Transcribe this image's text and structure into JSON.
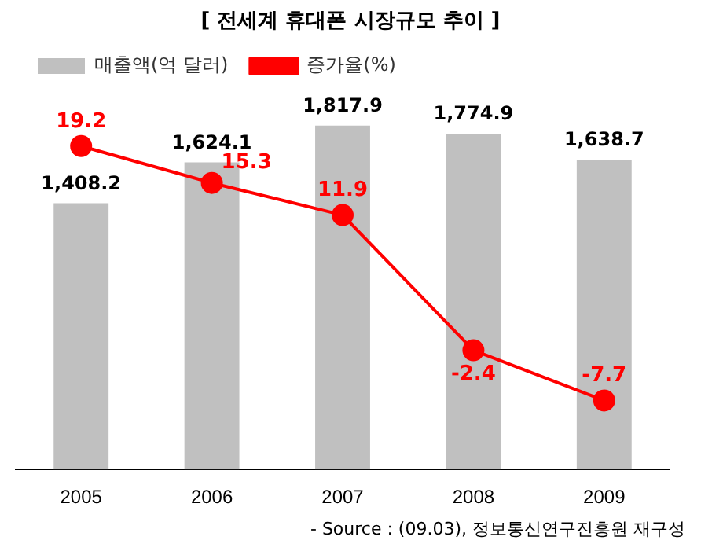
{
  "chart_data": {
    "type": "bar",
    "title": "[ 전세계 휴대폰 시장규모 추이 ]",
    "categories": [
      "2005",
      "2006",
      "2007",
      "2008",
      "2009"
    ],
    "series": [
      {
        "name": "매출액(억 달러)",
        "color": "#c0c0c0",
        "values": [
          1408.2,
          1624.1,
          1817.9,
          1774.9,
          1638.7
        ],
        "value_labels": [
          "1,408.2",
          "1,624.1",
          "1,817.9",
          "1,774.9",
          "1,638.7"
        ]
      },
      {
        "name": "증가율(%)",
        "type": "line",
        "axis": "y2",
        "color": "#ff0000",
        "marker": "circle",
        "values": [
          19.2,
          15.3,
          11.9,
          -2.4,
          -7.7
        ],
        "value_labels": [
          "19.2",
          "15.3",
          "11.9",
          "-2.4",
          "-7.7"
        ]
      }
    ],
    "tick_labels": "x",
    "grid": false,
    "legend": "top left",
    "annotations": [
      "- Source : (09.03), 정보통신연구진흥원 재구성"
    ]
  }
}
